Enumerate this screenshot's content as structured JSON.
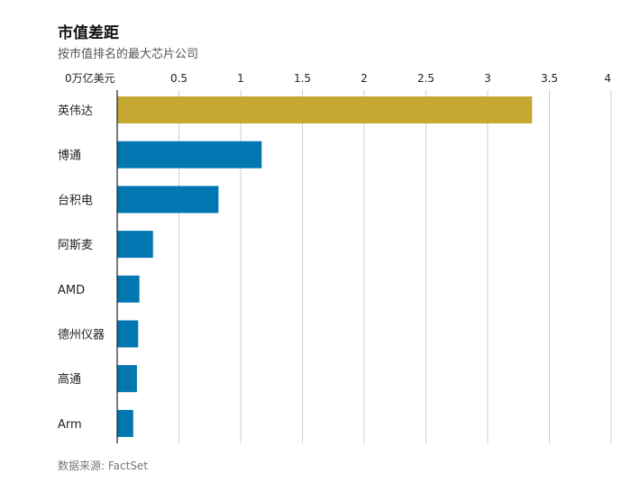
{
  "title": "市值差距",
  "subtitle": "按市值排名的最大芯片公司",
  "source": "数据来源: FactSet",
  "chart_data": {
    "type": "bar",
    "orientation": "horizontal",
    "title": "市值差距",
    "subtitle": "按市值排名的最大芯片公司",
    "xlabel": "万亿美元",
    "ylabel": "",
    "xlim": [
      0,
      4
    ],
    "ticks": [
      0,
      0.5,
      1,
      1.5,
      2,
      2.5,
      3,
      3.5,
      4
    ],
    "tick_labels": [
      "0万亿美元",
      "0.5",
      "1",
      "1.5",
      "2",
      "2.5",
      "3",
      "3.5",
      "4"
    ],
    "categories": [
      "英伟达",
      "博通",
      "台积电",
      "阿斯麦",
      "AMD",
      "德州仪器",
      "高通",
      "Arm"
    ],
    "values": [
      3.36,
      1.17,
      0.82,
      0.29,
      0.18,
      0.17,
      0.16,
      0.13
    ],
    "colors": [
      "#c4a832",
      "#0077b0",
      "#0077b0",
      "#0077b0",
      "#0077b0",
      "#0077b0",
      "#0077b0",
      "#0077b0"
    ],
    "grid": true
  }
}
